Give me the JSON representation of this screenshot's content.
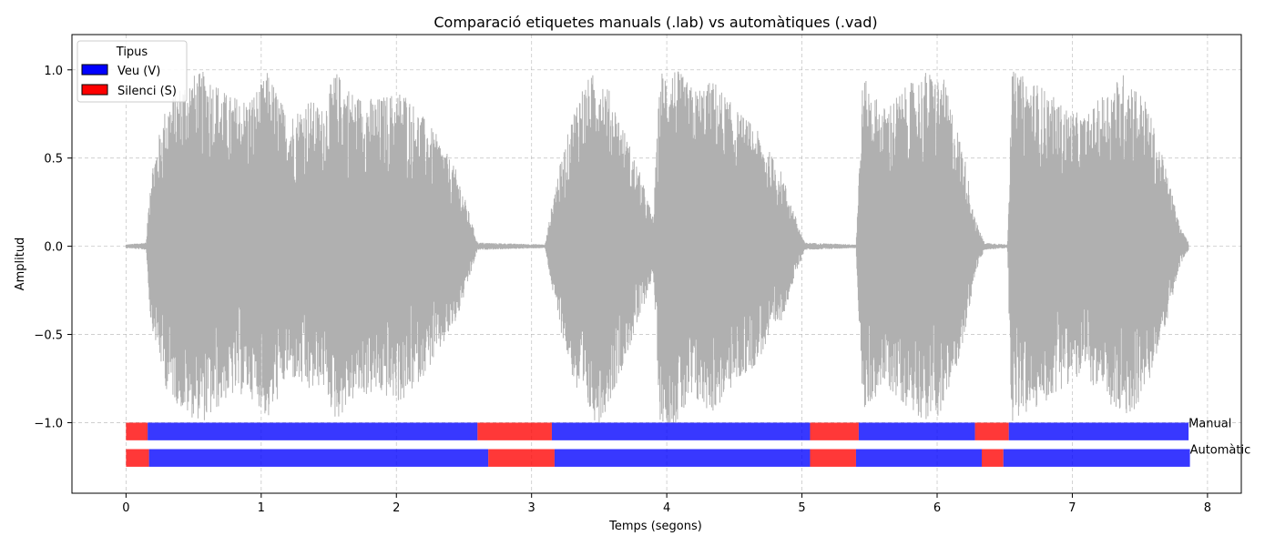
{
  "chart_data": {
    "type": "area",
    "title": "Comparació etiquetes manuals (.lab) vs automàtiques (.vad)",
    "xlabel": "Temps (segons)",
    "ylabel": "Amplitud",
    "xlim": [
      -0.4,
      8.25
    ],
    "ylim": [
      -1.4,
      1.2
    ],
    "x_ticks": [
      0,
      1,
      2,
      3,
      4,
      5,
      6,
      7,
      8
    ],
    "x_tick_labels": [
      "0",
      "1",
      "2",
      "3",
      "4",
      "5",
      "6",
      "7",
      "8"
    ],
    "y_ticks": [
      1.0,
      0.5,
      0.0,
      -0.5,
      -1.0
    ],
    "y_tick_labels": [
      "1.0",
      "0.5",
      "0.0",
      "−0.5",
      "−1.0"
    ],
    "grid": true,
    "waveform": {
      "color": "#b0b0b0",
      "duration": 7.86,
      "envelope": [
        [
          0.0,
          0.01
        ],
        [
          0.15,
          0.02
        ],
        [
          0.18,
          0.4
        ],
        [
          0.3,
          0.78
        ],
        [
          0.45,
          0.92
        ],
        [
          0.6,
          0.95
        ],
        [
          0.75,
          0.82
        ],
        [
          0.9,
          0.8
        ],
        [
          1.0,
          0.88
        ],
        [
          1.05,
          0.95
        ],
        [
          1.2,
          0.7
        ],
        [
          1.35,
          0.8
        ],
        [
          1.45,
          0.75
        ],
        [
          1.55,
          0.95
        ],
        [
          1.7,
          0.82
        ],
        [
          1.85,
          0.8
        ],
        [
          2.05,
          0.85
        ],
        [
          2.3,
          0.6
        ],
        [
          2.45,
          0.4
        ],
        [
          2.55,
          0.15
        ],
        [
          2.6,
          0.02
        ],
        [
          3.1,
          0.01
        ],
        [
          3.18,
          0.35
        ],
        [
          3.35,
          0.85
        ],
        [
          3.5,
          0.97
        ],
        [
          3.6,
          0.8
        ],
        [
          3.8,
          0.4
        ],
        [
          3.9,
          0.15
        ],
        [
          3.95,
          0.95
        ],
        [
          4.05,
          0.98
        ],
        [
          4.2,
          0.85
        ],
        [
          4.35,
          0.9
        ],
        [
          4.5,
          0.75
        ],
        [
          4.65,
          0.65
        ],
        [
          4.85,
          0.4
        ],
        [
          4.97,
          0.12
        ],
        [
          5.02,
          0.02
        ],
        [
          5.4,
          0.01
        ],
        [
          5.45,
          0.92
        ],
        [
          5.6,
          0.75
        ],
        [
          5.75,
          0.85
        ],
        [
          5.92,
          0.95
        ],
        [
          6.05,
          0.9
        ],
        [
          6.2,
          0.5
        ],
        [
          6.28,
          0.15
        ],
        [
          6.35,
          0.02
        ],
        [
          6.52,
          0.01
        ],
        [
          6.55,
          0.95
        ],
        [
          6.75,
          0.88
        ],
        [
          6.95,
          0.75
        ],
        [
          7.1,
          0.7
        ],
        [
          7.25,
          0.85
        ],
        [
          7.4,
          0.95
        ],
        [
          7.55,
          0.78
        ],
        [
          7.7,
          0.4
        ],
        [
          7.8,
          0.1
        ],
        [
          7.86,
          0.02
        ]
      ]
    },
    "label_tracks": [
      {
        "name": "Manual",
        "y_center": -1.05,
        "height": 0.1,
        "segments": [
          {
            "start": 0.0,
            "end": 0.16,
            "label": "S"
          },
          {
            "start": 0.16,
            "end": 2.6,
            "label": "V"
          },
          {
            "start": 2.6,
            "end": 3.15,
            "label": "S"
          },
          {
            "start": 3.15,
            "end": 5.06,
            "label": "V"
          },
          {
            "start": 5.06,
            "end": 5.42,
            "label": "S"
          },
          {
            "start": 5.42,
            "end": 6.28,
            "label": "V"
          },
          {
            "start": 6.28,
            "end": 6.53,
            "label": "S"
          },
          {
            "start": 6.53,
            "end": 7.86,
            "label": "V"
          }
        ]
      },
      {
        "name": "Automàtic",
        "y_center": -1.2,
        "height": 0.1,
        "segments": [
          {
            "start": 0.0,
            "end": 0.17,
            "label": "S"
          },
          {
            "start": 0.17,
            "end": 2.68,
            "label": "V"
          },
          {
            "start": 2.68,
            "end": 3.17,
            "label": "S"
          },
          {
            "start": 3.17,
            "end": 5.06,
            "label": "V"
          },
          {
            "start": 5.06,
            "end": 5.4,
            "label": "S"
          },
          {
            "start": 5.4,
            "end": 6.33,
            "label": "V"
          },
          {
            "start": 6.33,
            "end": 6.49,
            "label": "S"
          },
          {
            "start": 6.49,
            "end": 7.87,
            "label": "V"
          }
        ]
      }
    ],
    "colors": {
      "V": "#0000ff",
      "S": "#ff0000"
    },
    "legend": {
      "title": "Tipus",
      "placement": "top-left",
      "entries": [
        {
          "key": "V",
          "label": "Veu (V)",
          "color": "#0000ff"
        },
        {
          "key": "S",
          "label": "Silenci (S)",
          "color": "#ff0000"
        }
      ]
    }
  }
}
